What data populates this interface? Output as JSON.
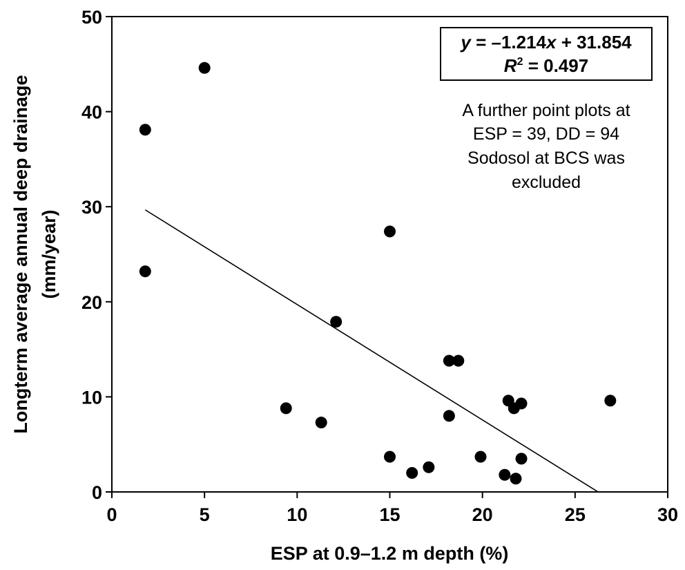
{
  "chart_data": {
    "type": "scatter",
    "xlabel": "ESP at 0.9–1.2 m depth (%)",
    "ylabel_lines": [
      "Longterm average annual deep drainage",
      "(mm/year)"
    ],
    "xlim": [
      0,
      30
    ],
    "ylim": [
      0,
      50
    ],
    "x_ticks": [
      "0",
      "5",
      "10",
      "15",
      "20",
      "25",
      "30"
    ],
    "y_ticks": [
      "0",
      "10",
      "20",
      "30",
      "40",
      "50"
    ],
    "grid": false,
    "points": [
      {
        "x": 1.8,
        "y": 38.1
      },
      {
        "x": 1.8,
        "y": 23.2
      },
      {
        "x": 5.0,
        "y": 44.6
      },
      {
        "x": 9.4,
        "y": 8.8
      },
      {
        "x": 11.3,
        "y": 7.3
      },
      {
        "x": 12.1,
        "y": 17.9
      },
      {
        "x": 15.0,
        "y": 27.4
      },
      {
        "x": 15.0,
        "y": 3.7
      },
      {
        "x": 16.2,
        "y": 2.0
      },
      {
        "x": 17.1,
        "y": 2.6
      },
      {
        "x": 18.2,
        "y": 13.8
      },
      {
        "x": 18.2,
        "y": 8.0
      },
      {
        "x": 18.7,
        "y": 13.8
      },
      {
        "x": 19.9,
        "y": 3.7
      },
      {
        "x": 21.2,
        "y": 1.8
      },
      {
        "x": 21.4,
        "y": 9.6
      },
      {
        "x": 21.7,
        "y": 8.8
      },
      {
        "x": 21.8,
        "y": 1.4
      },
      {
        "x": 22.1,
        "y": 9.3
      },
      {
        "x": 22.1,
        "y": 3.5
      },
      {
        "x": 26.9,
        "y": 9.6
      }
    ],
    "trendline": {
      "slope": -1.214,
      "intercept": 31.854,
      "x_start": 1.8,
      "x_end": 26.2
    },
    "equation": {
      "line1": "y = –1.214x + 31.854",
      "r2_prefix": "R",
      "r2_sup": "2",
      "r2_value": " = 0.497"
    },
    "note_lines": [
      "A further point plots at",
      "ESP = 39, DD = 94",
      "Sodosol at BCS was",
      "excluded"
    ]
  }
}
